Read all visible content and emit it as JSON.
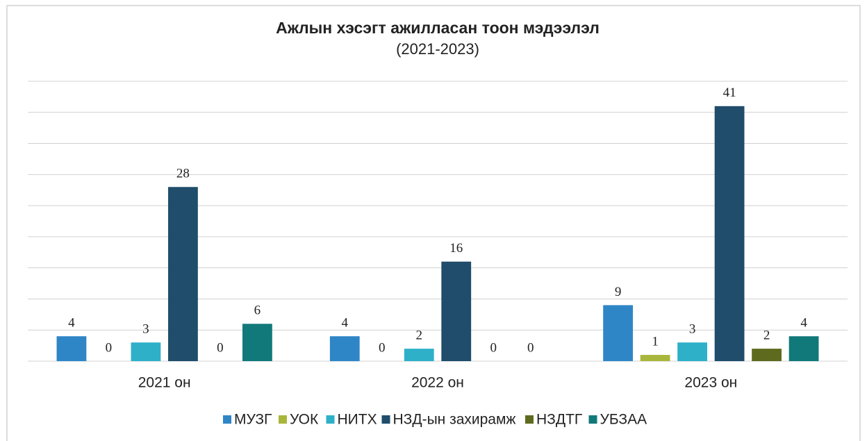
{
  "chart_data": {
    "type": "bar",
    "title": "Ажлын хэсэгт ажилласан тоон мэдээлэл",
    "subtitle": "(2021-2023)",
    "categories": [
      "2021 он",
      "2022 он",
      "2023 он"
    ],
    "series": [
      {
        "name": "МУЗГ",
        "color": "#2f86c6",
        "values": [
          4,
          4,
          9
        ]
      },
      {
        "name": "УОК",
        "color": "#a9b63c",
        "values": [
          0,
          0,
          1
        ]
      },
      {
        "name": "НИТХ",
        "color": "#2eb0c9",
        "values": [
          3,
          2,
          3
        ]
      },
      {
        "name": "НЗД-ын захирамж",
        "color": "#1f4d6b",
        "values": [
          28,
          16,
          41
        ]
      },
      {
        "name": "НЗДТГ",
        "color": "#5e6b1f",
        "values": [
          0,
          0,
          2
        ]
      },
      {
        "name": "УБЗАА",
        "color": "#11797a",
        "values": [
          6,
          0,
          4
        ]
      }
    ],
    "ylim": [
      0,
      45
    ],
    "yticks": [
      0,
      5,
      10,
      15,
      20,
      25,
      30,
      35,
      40,
      45
    ],
    "grid": true,
    "legend": "bottom"
  }
}
